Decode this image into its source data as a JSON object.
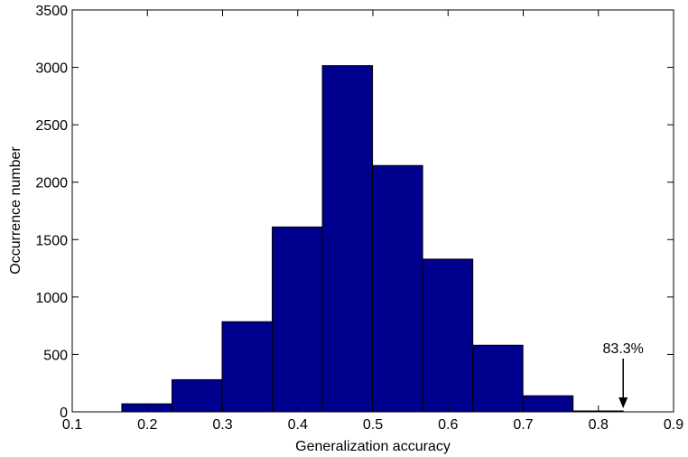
{
  "chart_data": {
    "type": "histogram",
    "xlabel": "Generalization accuracy",
    "ylabel": "Occurrence number",
    "bins": [
      0.166,
      0.2327,
      0.2994,
      0.3661,
      0.4328,
      0.4995,
      0.5662,
      0.6329,
      0.6996,
      0.7663,
      0.833
    ],
    "values": [
      70,
      280,
      785,
      1610,
      3015,
      2145,
      1330,
      580,
      140,
      8
    ],
    "color": "#00008f",
    "xlim": [
      0.1,
      0.9
    ],
    "xticks": [
      0.1,
      0.2,
      0.3,
      0.4,
      0.5,
      0.6,
      0.7,
      0.8,
      0.9
    ],
    "ylim": [
      0,
      3500
    ],
    "yticks": [
      0,
      500,
      1000,
      1500,
      2000,
      2500,
      3000,
      3500
    ],
    "annotation": {
      "text": "83.3%",
      "x": 0.833
    }
  }
}
